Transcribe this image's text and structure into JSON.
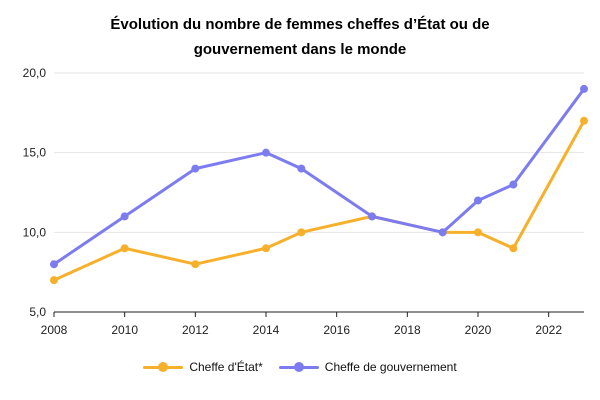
{
  "chart_data": {
    "type": "line",
    "title_line1": "Évolution du nombre de femmes cheffes d’État ou de",
    "title_line2": "gouvernement dans le monde",
    "xlim": [
      2008,
      2023
    ],
    "x_ticks": [
      2008,
      2010,
      2012,
      2014,
      2016,
      2018,
      2020,
      2022
    ],
    "ylim": [
      5,
      20
    ],
    "y_ticks": [
      5,
      10,
      15,
      20
    ],
    "y_tick_labels": [
      "5,0",
      "10,0",
      "15,0",
      "20,0"
    ],
    "grid": true,
    "legend_position": "bottom",
    "series": [
      {
        "name": "Cheffe d'État*",
        "color": "#F6B02B",
        "x": [
          2008,
          2010,
          2012,
          2014,
          2015,
          2017,
          2019,
          2020,
          2021,
          2023
        ],
        "values": [
          7,
          9,
          8,
          9,
          10,
          11,
          10,
          10,
          9,
          17
        ]
      },
      {
        "name": "Cheffe de gouvernement",
        "color": "#7C7CF0",
        "x": [
          2008,
          2010,
          2012,
          2014,
          2015,
          2017,
          2019,
          2020,
          2021,
          2023
        ],
        "values": [
          8,
          11,
          14,
          15,
          14,
          11,
          10,
          12,
          13,
          19
        ]
      }
    ]
  }
}
